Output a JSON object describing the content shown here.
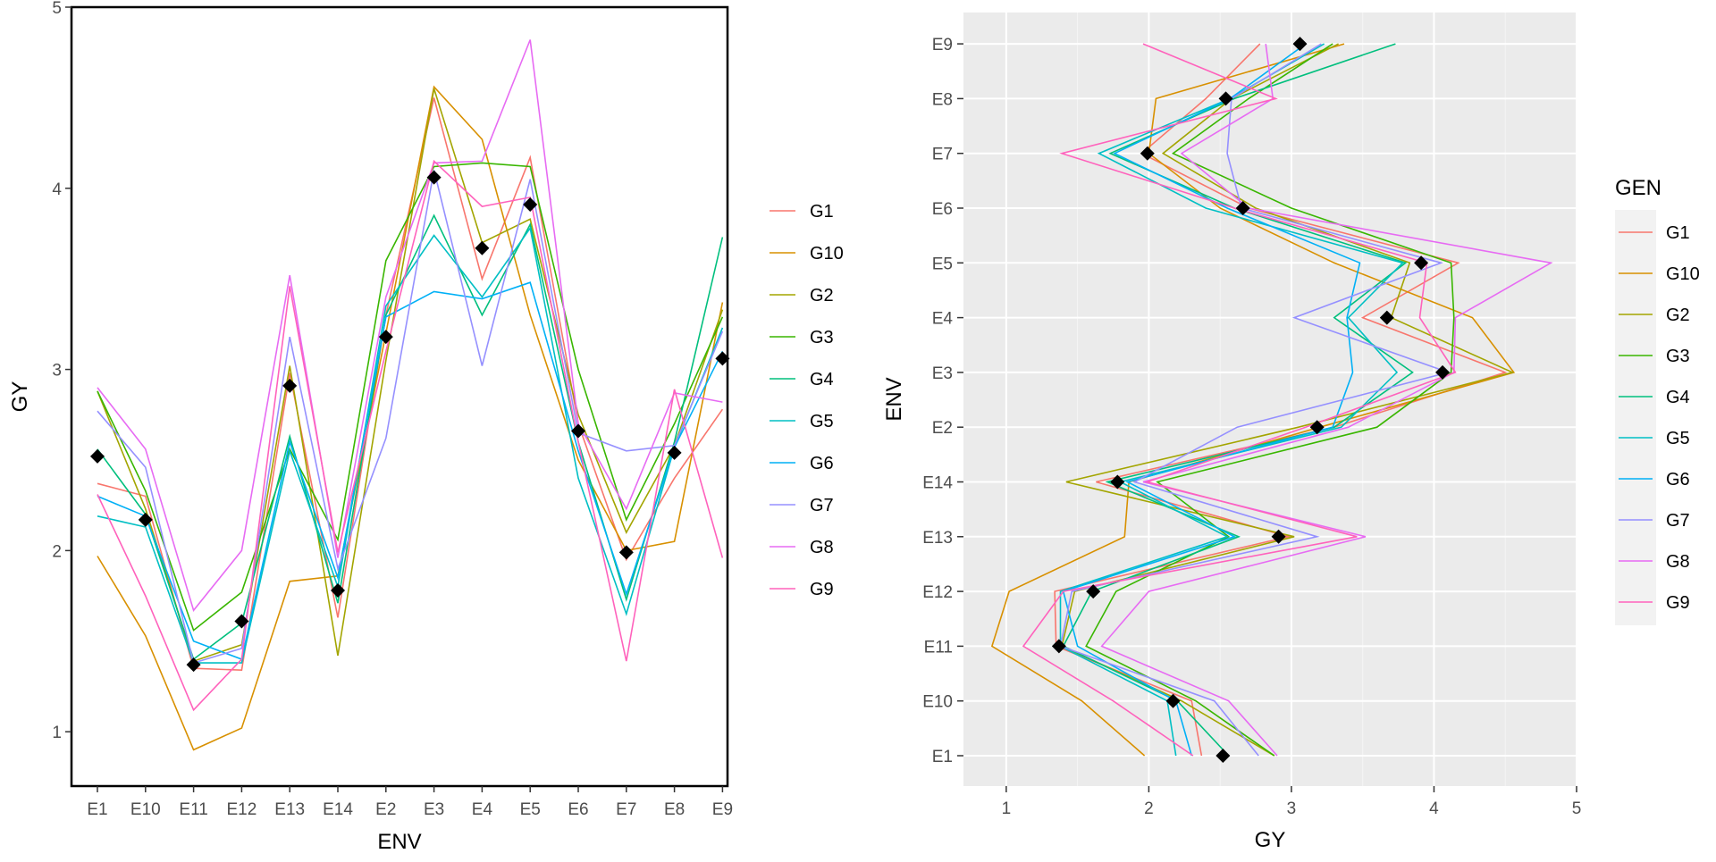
{
  "chart_data": [
    {
      "type": "line",
      "xlabel": "ENV",
      "ylabel": "GY",
      "title": "",
      "ylim": [
        0.7,
        5
      ],
      "yticks": [
        1,
        2,
        3,
        4,
        5
      ],
      "categories": [
        "E1",
        "E10",
        "E11",
        "E12",
        "E13",
        "E14",
        "E2",
        "E3",
        "E4",
        "E5",
        "E6",
        "E7",
        "E8",
        "E9"
      ],
      "grid": false,
      "border": "full box",
      "legend_position": "right",
      "series": [
        {
          "name": "G1",
          "color": "#F8766D",
          "values": [
            2.37,
            2.3,
            1.35,
            1.34,
            2.98,
            1.63,
            3.3,
            4.5,
            3.5,
            4.17,
            2.7,
            1.95,
            2.4,
            2.78
          ]
        },
        {
          "name": "G10",
          "color": "#D89000",
          "values": [
            1.97,
            1.53,
            0.9,
            1.02,
            1.83,
            1.86,
            3.2,
            4.56,
            4.27,
            3.3,
            2.5,
            2.0,
            2.05,
            3.37
          ]
        },
        {
          "name": "G2",
          "color": "#A3A500",
          "values": [
            2.88,
            2.23,
            1.39,
            1.48,
            3.02,
            1.42,
            3.05,
            4.55,
            3.7,
            3.83,
            2.75,
            2.1,
            2.58,
            3.33
          ]
        },
        {
          "name": "G3",
          "color": "#39B600",
          "values": [
            2.88,
            2.33,
            1.56,
            1.77,
            2.56,
            2.06,
            3.6,
            4.12,
            4.14,
            4.12,
            3.0,
            2.17,
            2.7,
            3.29
          ]
        },
        {
          "name": "G4",
          "color": "#00BF7D",
          "values": [
            2.56,
            2.2,
            1.4,
            1.6,
            2.63,
            1.71,
            3.3,
            3.85,
            3.3,
            3.8,
            2.6,
            1.73,
            2.6,
            3.73
          ]
        },
        {
          "name": "G5",
          "color": "#00BFC4",
          "values": [
            2.19,
            2.13,
            1.38,
            1.38,
            2.55,
            1.8,
            3.35,
            3.74,
            3.4,
            3.78,
            2.4,
            1.65,
            2.57,
            3.23
          ]
        },
        {
          "name": "G6",
          "color": "#00B0F6",
          "values": [
            2.3,
            2.19,
            1.5,
            1.4,
            2.6,
            1.85,
            3.29,
            3.43,
            3.39,
            3.48,
            2.55,
            1.76,
            2.57,
            3.1
          ]
        },
        {
          "name": "G7",
          "color": "#9590FF",
          "values": [
            2.77,
            2.46,
            1.38,
            1.46,
            3.18,
            1.9,
            2.62,
            4.1,
            3.02,
            4.05,
            2.65,
            2.55,
            2.58,
            3.21
          ]
        },
        {
          "name": "G8",
          "color": "#E76BF3",
          "values": [
            2.9,
            2.56,
            1.67,
            2.0,
            3.52,
            1.96,
            3.4,
            4.14,
            4.15,
            4.82,
            2.7,
            2.23,
            2.87,
            2.82
          ]
        },
        {
          "name": "G9",
          "color": "#FF62BC",
          "values": [
            2.31,
            1.75,
            1.12,
            1.4,
            3.46,
            1.99,
            3.1,
            4.15,
            3.9,
            3.95,
            2.6,
            1.39,
            2.89,
            1.96
          ]
        }
      ],
      "mean_points": {
        "marker": "filled diamond",
        "color": "#000000",
        "values": [
          2.52,
          2.17,
          1.37,
          1.61,
          2.91,
          1.78,
          3.18,
          4.06,
          3.67,
          3.91,
          2.66,
          1.99,
          2.54,
          3.06
        ]
      }
    },
    {
      "type": "line",
      "xlabel": "GY",
      "ylabel": "ENV",
      "title": "",
      "xlim": [
        0.7,
        5
      ],
      "xticks": [
        1,
        2,
        3,
        4,
        5
      ],
      "categories": [
        "E1",
        "E10",
        "E11",
        "E12",
        "E13",
        "E14",
        "E2",
        "E3",
        "E4",
        "E5",
        "E6",
        "E7",
        "E8",
        "E9"
      ],
      "orientation": "categories on y axis",
      "grid": true,
      "panel_background": "#EBEBEB",
      "legend_title": "GEN",
      "legend_position": "right",
      "legend_entries": [
        "G1",
        "G10",
        "G2",
        "G3",
        "G4",
        "G5",
        "G6",
        "G7",
        "G8",
        "G9"
      ],
      "same_data_as_chart": 0
    }
  ]
}
